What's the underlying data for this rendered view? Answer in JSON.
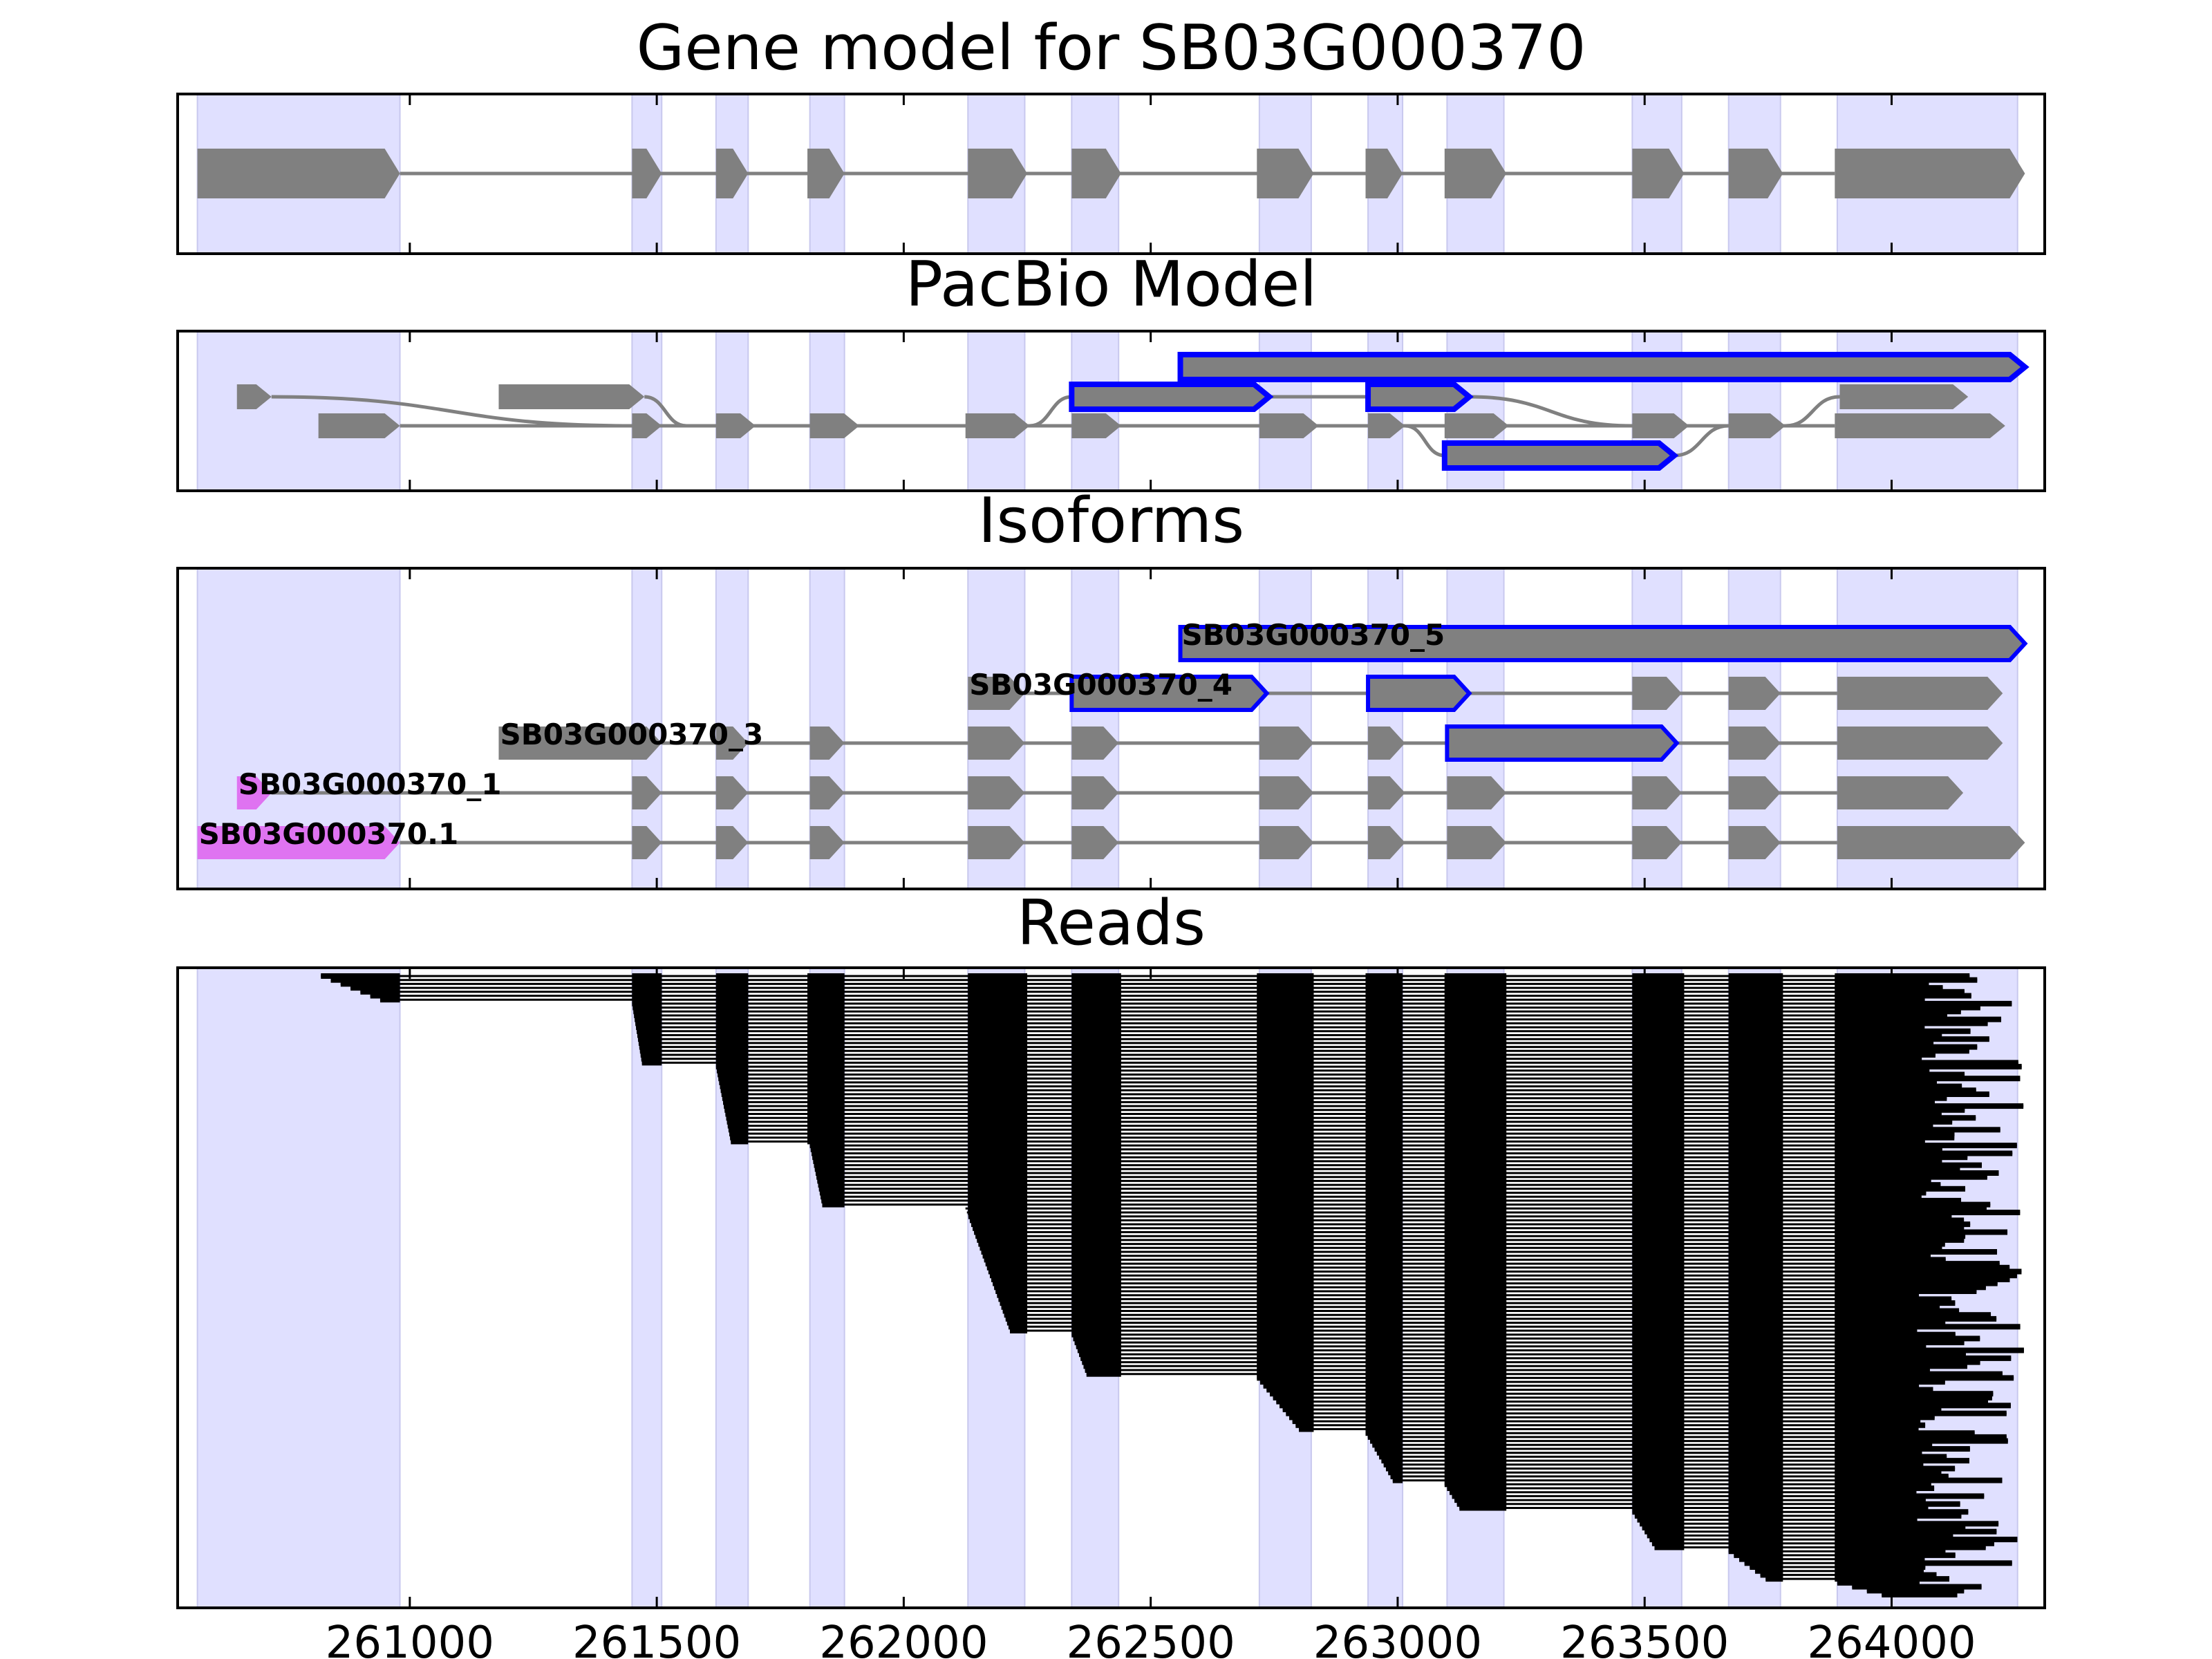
{
  "chart_data": {
    "type": "gene-track",
    "xlim": [
      260530,
      264310
    ],
    "xticks": [
      261000,
      261500,
      262000,
      262500,
      263000,
      263500,
      264000
    ],
    "xtick_labels": [
      "261000",
      "261500",
      "262000",
      "262500",
      "263000",
      "263500",
      "264000"
    ],
    "colors": {
      "exon": "#808080",
      "intron": "#808080",
      "shade": "#e0e0ff",
      "highlight_outline": "#0000ff",
      "selected_isoform": "#df73f1",
      "read": "#000000"
    },
    "shaded_regions": [
      [
        260570,
        260980
      ],
      [
        261450,
        261510
      ],
      [
        261620,
        261685
      ],
      [
        261810,
        261880
      ],
      [
        262130,
        262245
      ],
      [
        262340,
        262435
      ],
      [
        262720,
        262825
      ],
      [
        262940,
        263010
      ],
      [
        263100,
        263215
      ],
      [
        263475,
        263575
      ],
      [
        263670,
        263775
      ],
      [
        263890,
        264255
      ]
    ],
    "panels": [
      {
        "title": "Gene model for SB03G000370",
        "tracks": [
          {
            "exons": [
              [
                260570,
                260980
              ],
              [
                261450,
                261510
              ],
              [
                261620,
                261685
              ],
              [
                261805,
                261880
              ],
              [
                262130,
                262250
              ],
              [
                262340,
                262440
              ],
              [
                262715,
                262830
              ],
              [
                262935,
                263010
              ],
              [
                263095,
                263220
              ],
              [
                263475,
                263580
              ],
              [
                263670,
                263780
              ],
              [
                263885,
                264270
              ]
            ],
            "strand": "+"
          }
        ]
      },
      {
        "title": "PacBio Model",
        "tracks": [
          {
            "lane": 1,
            "exons": [
              [
                260650,
                260720
              ]
            ],
            "strand": "+"
          },
          {
            "lane": 1,
            "exons": [
              [
                261180,
                261475
              ]
            ],
            "strand": "+"
          },
          {
            "lane": 1,
            "exons": [
              [
                262340,
                262740
              ]
            ],
            "strand": "+",
            "highlight": true
          },
          {
            "lane": 1,
            "exons": [
              [
                262940,
                263145
              ]
            ],
            "strand": "+",
            "highlight": true
          },
          {
            "lane": 1,
            "exons": [
              [
                263895,
                264155
              ]
            ],
            "strand": "+"
          },
          {
            "lane": 0,
            "exons": [
              [
                260815,
                260980
              ],
              [
                261450,
                261510
              ],
              [
                261620,
                261700
              ],
              [
                261810,
                261910
              ],
              [
                262125,
                262255
              ],
              [
                262340,
                262440
              ],
              [
                262720,
                262840
              ],
              [
                262940,
                263015
              ],
              [
                263095,
                263225
              ],
              [
                263475,
                263590
              ],
              [
                263670,
                263785
              ],
              [
                263885,
                264230
              ]
            ],
            "strand": "+"
          },
          {
            "lane": 2,
            "exons": [
              [
                262560,
                264270
              ]
            ],
            "strand": "+",
            "highlight": true
          },
          {
            "lane": -1,
            "exons": [
              [
                263095,
                263560
              ]
            ],
            "strand": "+",
            "highlight": true
          }
        ],
        "connectors": [
          {
            "from": [
              260720,
              1
            ],
            "to": [
              261450,
              0
            ]
          },
          {
            "from": [
              261475,
              1
            ],
            "to": [
              261560,
              0
            ]
          },
          {
            "from": [
              262255,
              0
            ],
            "to": [
              262340,
              1
            ]
          },
          {
            "from": [
              262740,
              1
            ],
            "to": [
              262940,
              1
            ]
          },
          {
            "from": [
              263015,
              0
            ],
            "to": [
              263095,
              -1
            ]
          },
          {
            "from": [
              263145,
              1
            ],
            "to": [
              263475,
              0
            ]
          },
          {
            "from": [
              263560,
              -1
            ],
            "to": [
              263670,
              0
            ]
          },
          {
            "from": [
              263785,
              0
            ],
            "to": [
              263895,
              1
            ]
          }
        ]
      },
      {
        "title": "Isoforms",
        "isoforms": [
          {
            "name": "SB03G000370.1",
            "lane": 0,
            "selected": true,
            "exons": [
              [
                260570,
                260980
              ],
              [
                261450,
                261510
              ],
              [
                261620,
                261685
              ],
              [
                261810,
                261880
              ],
              [
                262130,
                262245
              ],
              [
                262340,
                262435
              ],
              [
                262720,
                262830
              ],
              [
                262940,
                263015
              ],
              [
                263100,
                263220
              ],
              [
                263475,
                263575
              ],
              [
                263670,
                263775
              ],
              [
                263890,
                264270
              ]
            ]
          },
          {
            "name": "SB03G000370_1",
            "lane": 1,
            "selected": true,
            "exons": [
              [
                260650,
                260720
              ]
            ],
            "extra": [
              [
                261450,
                261510
              ],
              [
                261620,
                261685
              ],
              [
                261810,
                261880
              ],
              [
                262130,
                262245
              ],
              [
                262340,
                262435
              ],
              [
                262720,
                262830
              ],
              [
                262940,
                263015
              ],
              [
                263100,
                263220
              ],
              [
                263475,
                263575
              ],
              [
                263670,
                263775
              ],
              [
                263890,
                264145
              ]
            ]
          },
          {
            "name": "SB03G000370_3",
            "lane": 2,
            "exons": [
              [
                261180,
                261510
              ],
              [
                261620,
                261685
              ],
              [
                261810,
                261880
              ],
              [
                262130,
                262245
              ],
              [
                262340,
                262435
              ],
              [
                262720,
                262830
              ],
              [
                262940,
                263015
              ]
            ],
            "highlight_exons": [
              [
                263100,
                263565
              ]
            ],
            "extra": [
              [
                263670,
                263775
              ],
              [
                263890,
                264225
              ]
            ]
          },
          {
            "name": "SB03G000370_4",
            "lane": 3,
            "exons": [
              [
                262130,
                262245
              ]
            ],
            "highlight_exons": [
              [
                262340,
                262735
              ],
              [
                262940,
                263145
              ]
            ],
            "extra": [
              [
                263475,
                263575
              ],
              [
                263670,
                263775
              ],
              [
                263890,
                264225
              ]
            ]
          },
          {
            "name": "SB03G000370_5",
            "lane": 4,
            "highlight_exons": [
              [
                262560,
                264270
              ]
            ]
          }
        ]
      },
      {
        "title": "Reads",
        "read_blocks": [
          {
            "rows": [
              0,
              6
            ],
            "first_exon_start": [
              260820,
              260940
            ]
          },
          {
            "rows": [
              7,
              22
            ],
            "first_exon_start": [
              261450,
              261470
            ]
          },
          {
            "rows": [
              23,
              42
            ],
            "first_exon_start": [
              261620,
              261650
            ]
          },
          {
            "rows": [
              43,
              58
            ],
            "first_exon_start": [
              261810,
              261835
            ]
          },
          {
            "rows": [
              59,
              90
            ],
            "first_exon_start": [
              262125,
              262215
            ]
          },
          {
            "rows": [
              91,
              101
            ],
            "first_exon_start": [
              262340,
              262370
            ]
          },
          {
            "rows": [
              102,
              115
            ],
            "first_exon_start": [
              262715,
              262800
            ]
          },
          {
            "rows": [
              116,
              128
            ],
            "first_exon_start": [
              262935,
              262990
            ]
          },
          {
            "rows": [
              129,
              135
            ],
            "first_exon_start": [
              263095,
              263125
            ]
          },
          {
            "rows": [
              136,
              145
            ],
            "first_exon_start": [
              263475,
              263520
            ]
          },
          {
            "rows": [
              146,
              153
            ],
            "first_exon_start": [
              263670,
              263745
            ]
          },
          {
            "rows": [
              154,
              157
            ],
            "first_exon_start": [
              263890,
              263980
            ]
          }
        ],
        "read_end_range": [
          264050,
          264270
        ]
      }
    ]
  }
}
